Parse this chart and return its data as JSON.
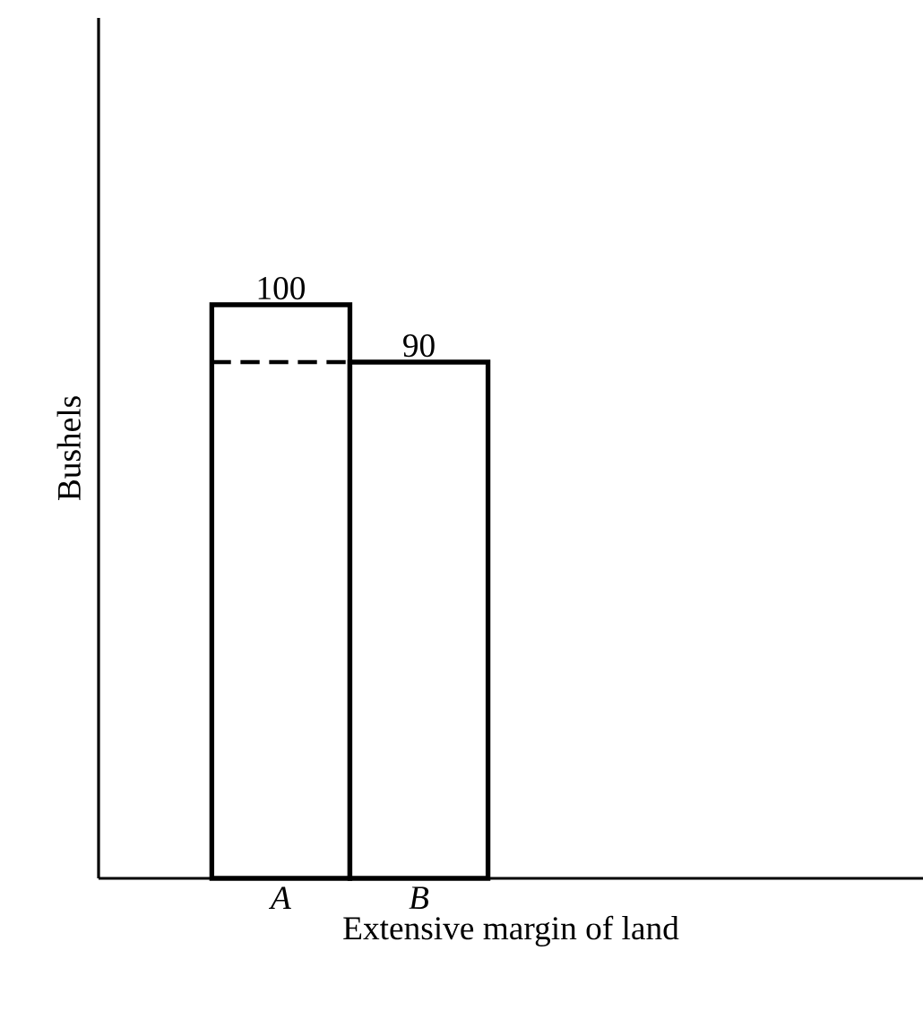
{
  "chart_data": {
    "type": "bar",
    "xlabel": "Extensive margin of land",
    "ylabel": "Bushels",
    "categories": [
      "*A*",
      "*B*"
    ],
    "values": [
      100,
      90
    ],
    "color": "#ffffff",
    "data_labels": true,
    "ref_lines": [
      {
        "axis": "y",
        "value": 90,
        "line_style": "dashed"
      }
    ]
  }
}
